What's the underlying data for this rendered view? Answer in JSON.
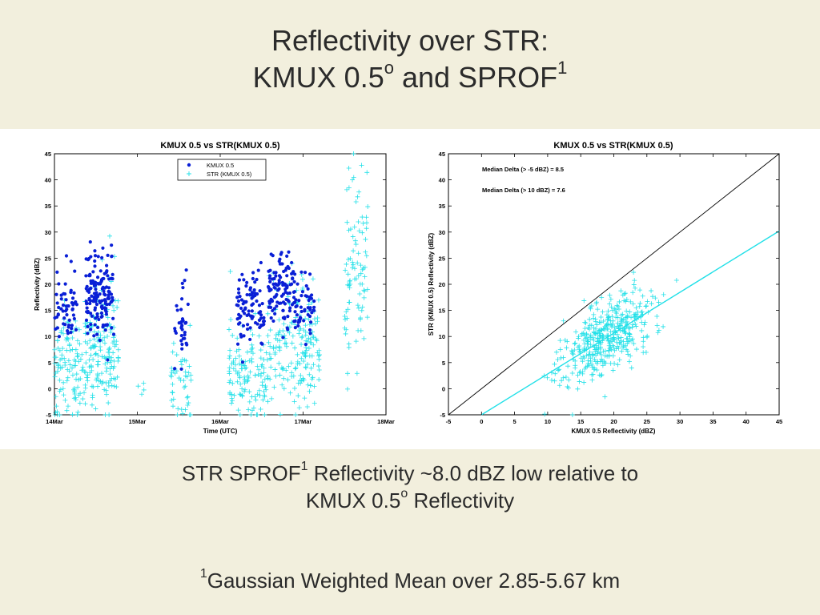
{
  "slide": {
    "title_line1": "Reflectivity over STR:",
    "title_line2_a": "KMUX 0.5",
    "title_line2_sup": "o",
    "title_line2_b": " and SPROF",
    "title_line2_sup2": "1",
    "caption_line1_a": "STR SPROF",
    "caption_line1_sup": "1",
    "caption_line1_b": " Reflectivity ~8.0 dBZ low relative to",
    "caption_line2_a": "KMUX 0.5",
    "caption_line2_sup": "o",
    "caption_line2_b": " Reflectivity",
    "footnote_sup": "1",
    "footnote_text": "Gaussian Weighted Mean over 2.85-5.67 km"
  },
  "colors": {
    "background": "#f2efdd",
    "kmux": "#0a1fd6",
    "str": "#22e0e8",
    "one_to_one": "#000000",
    "fit": "#22e0e8"
  },
  "chart_data": [
    {
      "type": "scatter",
      "title": "KMUX 0.5 vs STR(KMUX 0.5)",
      "xlabel": "Time (UTC)",
      "ylabel": "Reflectivity (dBZ)",
      "xlim": [
        0,
        4
      ],
      "ylim": [
        -5,
        45
      ],
      "xtick_labels": [
        "14Mar",
        "15Mar",
        "16Mar",
        "17Mar",
        "18Mar"
      ],
      "xtick_values": [
        0,
        1,
        2,
        3,
        4
      ],
      "ytick_values": [
        -5,
        0,
        5,
        10,
        15,
        20,
        25,
        30,
        35,
        40,
        45
      ],
      "legend": {
        "placement": "top-center",
        "entries": [
          "KMUX 0.5",
          "STR (KMUX 0.5)"
        ]
      },
      "series": [
        {
          "name": "KMUX 0.5",
          "marker": "dot",
          "clusters": [
            {
              "x": [
                0.0,
                0.28
              ],
              "y_mean": 15.5,
              "y_sd": 3.5,
              "n": 55
            },
            {
              "x": [
                0.38,
                0.72
              ],
              "y_mean": 17.5,
              "y_sd": 4.0,
              "n": 150
            },
            {
              "x": [
                1.45,
                1.62
              ],
              "y_mean": 12.5,
              "y_sd": 4.0,
              "n": 35
            },
            {
              "x": [
                2.2,
                2.55
              ],
              "y_mean": 15.5,
              "y_sd": 3.5,
              "n": 90
            },
            {
              "x": [
                2.58,
                2.9
              ],
              "y_mean": 20.0,
              "y_sd": 4.0,
              "n": 110
            },
            {
              "x": [
                2.9,
                3.15
              ],
              "y_mean": 16.0,
              "y_sd": 3.5,
              "n": 50
            }
          ]
        },
        {
          "name": "STR (KMUX 0.5)",
          "marker": "plus",
          "clusters": [
            {
              "x": [
                0.0,
                0.35
              ],
              "y_mean": 4.0,
              "y_sd": 5.0,
              "n": 110
            },
            {
              "x": [
                0.35,
                0.78
              ],
              "y_mean": 8.5,
              "y_sd": 5.5,
              "n": 170
            },
            {
              "x": [
                1.0,
                1.08
              ],
              "y_mean": 0.5,
              "y_sd": 1.0,
              "n": 4
            },
            {
              "x": [
                1.4,
                1.65
              ],
              "y_mean": 1.5,
              "y_sd": 4.5,
              "n": 45
            },
            {
              "x": [
                2.1,
                2.55
              ],
              "y_mean": 3.5,
              "y_sd": 5.0,
              "n": 120
            },
            {
              "x": [
                2.55,
                3.2
              ],
              "y_mean": 8.0,
              "y_sd": 6.0,
              "n": 190
            },
            {
              "x": [
                3.5,
                3.78
              ],
              "y_mean": 25.0,
              "y_sd": 11.0,
              "n": 90
            }
          ]
        }
      ]
    },
    {
      "type": "scatter",
      "title": "KMUX 0.5 vs STR(KMUX 0.5)",
      "xlabel": "KMUX 0.5 Reflectivity (dBZ)",
      "ylabel": "STR (KMUX 0.5) Reflectivity (dBZ)",
      "xlim": [
        -5,
        45
      ],
      "ylim": [
        -5,
        45
      ],
      "xtick_values": [
        -5,
        0,
        5,
        10,
        15,
        20,
        25,
        30,
        35,
        40,
        45
      ],
      "ytick_values": [
        -5,
        0,
        5,
        10,
        15,
        20,
        25,
        30,
        35,
        40,
        45
      ],
      "annotations": [
        "Median Delta (> -5 dBZ) = 8.5",
        "Median Delta (> 10 dBZ) = 7.6"
      ],
      "lines": [
        {
          "kind": "one-to-one",
          "x": [
            -5,
            45
          ],
          "y": [
            -5,
            45
          ]
        },
        {
          "kind": "fit",
          "x": [
            0,
            45
          ],
          "y": [
            -5,
            30.2
          ]
        }
      ],
      "series": [
        {
          "marker": "plus",
          "x_range": [
            8,
            30
          ],
          "fit_slope": 0.782,
          "fit_intercept": -5.0,
          "scatter_sd": 3.5,
          "n": 420
        }
      ]
    }
  ]
}
